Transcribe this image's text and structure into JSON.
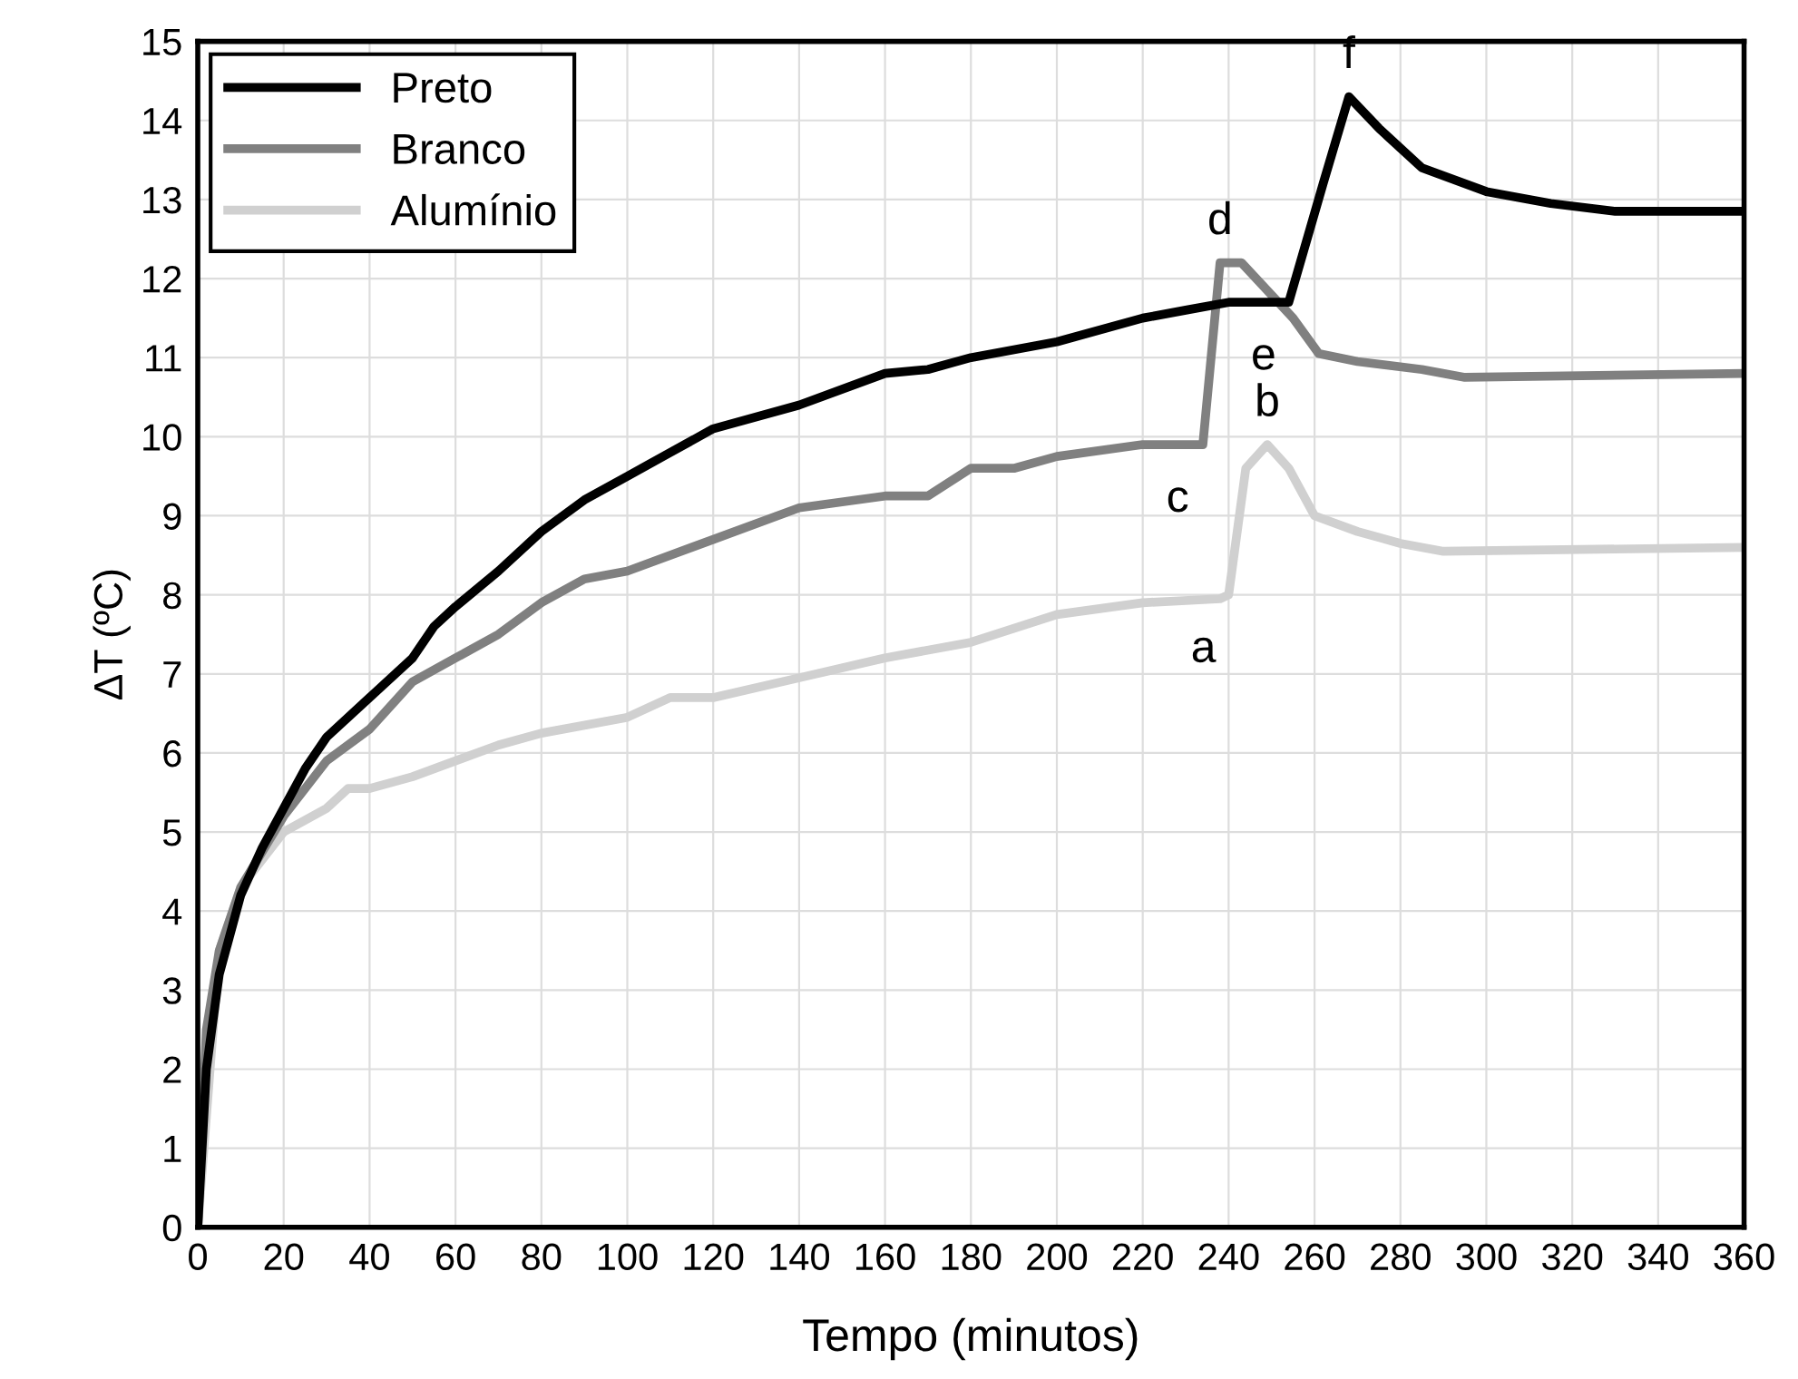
{
  "chart_data": {
    "type": "line",
    "xlabel": "Tempo (minutos)",
    "ylabel": "ΔT (ºC)",
    "xlim": [
      0,
      360
    ],
    "xticks": [
      0,
      20,
      40,
      60,
      80,
      100,
      120,
      140,
      160,
      180,
      200,
      220,
      240,
      260,
      280,
      300,
      320,
      340,
      360
    ],
    "ylim": [
      0,
      15
    ],
    "yticks": [
      0,
      1,
      2,
      3,
      4,
      5,
      6,
      7,
      8,
      9,
      10,
      11,
      12,
      13,
      14,
      15
    ],
    "grid": true,
    "legend": "top left",
    "marker": "none",
    "line_style": "solid",
    "series": [
      {
        "name": "Preto",
        "color": "#000000",
        "x": [
          0,
          2,
          5,
          10,
          15,
          20,
          25,
          30,
          40,
          50,
          55,
          60,
          70,
          80,
          90,
          100,
          110,
          120,
          140,
          160,
          170,
          180,
          200,
          220,
          230,
          240,
          254,
          262,
          268,
          275,
          285,
          300,
          315,
          330,
          360
        ],
        "values": [
          0,
          2,
          3.2,
          4.2,
          4.8,
          5.3,
          5.8,
          6.2,
          6.7,
          7.2,
          7.6,
          7.85,
          8.3,
          8.8,
          9.2,
          9.5,
          9.8,
          10.1,
          10.4,
          10.8,
          10.85,
          11.0,
          11.2,
          11.5,
          11.6,
          11.7,
          11.7,
          13.2,
          14.3,
          13.9,
          13.4,
          13.1,
          12.95,
          12.85,
          12.85
        ]
      },
      {
        "name": "Branco",
        "color": "#808080",
        "x": [
          0,
          2,
          5,
          10,
          20,
          30,
          40,
          50,
          60,
          70,
          80,
          90,
          100,
          120,
          140,
          160,
          170,
          180,
          190,
          200,
          220,
          234,
          238,
          243,
          255,
          261,
          270,
          285,
          295,
          360
        ],
        "values": [
          0,
          2.5,
          3.5,
          4.3,
          5.2,
          5.9,
          6.3,
          6.9,
          7.2,
          7.5,
          7.9,
          8.2,
          8.3,
          8.7,
          9.1,
          9.25,
          9.25,
          9.6,
          9.6,
          9.75,
          9.9,
          9.9,
          12.2,
          12.2,
          11.5,
          11.05,
          10.95,
          10.85,
          10.75,
          10.8
        ]
      },
      {
        "name": "Alumínio",
        "color": "#d0d0d0",
        "x": [
          0,
          5,
          10,
          20,
          30,
          35,
          40,
          50,
          60,
          70,
          80,
          100,
          110,
          120,
          140,
          160,
          180,
          200,
          220,
          238,
          240,
          244,
          249,
          254,
          260,
          270,
          280,
          290,
          360
        ],
        "values": [
          0,
          3.5,
          4.3,
          5.0,
          5.3,
          5.55,
          5.55,
          5.7,
          5.9,
          6.1,
          6.25,
          6.45,
          6.7,
          6.7,
          6.95,
          7.2,
          7.4,
          7.75,
          7.9,
          7.95,
          8.0,
          9.6,
          9.9,
          9.6,
          9.0,
          8.8,
          8.65,
          8.55,
          8.6
        ]
      }
    ],
    "annotations": [
      {
        "text": "a",
        "x": 240,
        "y": 8.0
      },
      {
        "text": "b",
        "x": 249,
        "y": 9.9
      },
      {
        "text": "c",
        "x": 234,
        "y": 9.9
      },
      {
        "text": "d",
        "x": 238,
        "y": 12.2
      },
      {
        "text": "e",
        "x": 254,
        "y": 11.7
      },
      {
        "text": "f",
        "x": 268,
        "y": 14.3
      }
    ]
  }
}
